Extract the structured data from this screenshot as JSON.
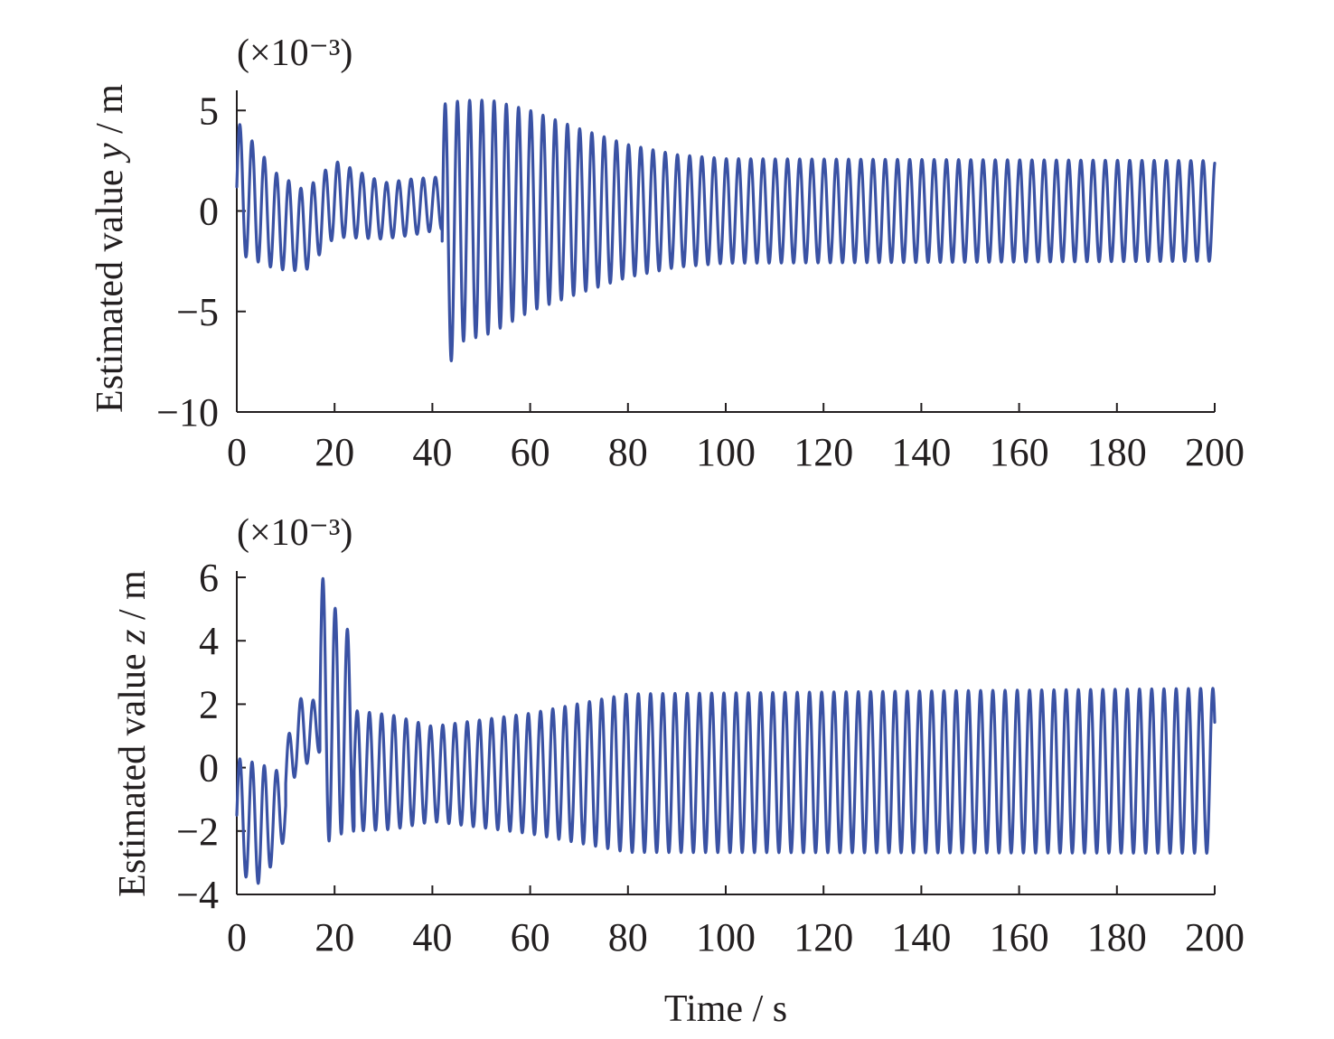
{
  "chart_data": [
    {
      "type": "line",
      "ylabel": "Estimated value y / m",
      "ylabel_prefix": "Estimated value ",
      "ylabel_var": "y",
      "ylabel_suffix": " / m",
      "y_scale_note": "(×10⁻³)",
      "xlabel": "",
      "xlim": [
        0,
        200
      ],
      "ylim": [
        -10,
        6
      ],
      "x_ticks": [
        0,
        20,
        40,
        60,
        80,
        100,
        120,
        140,
        160,
        180,
        200
      ],
      "y_ticks": [
        -10,
        -5,
        0,
        5
      ],
      "y_tick_labels": [
        "−10",
        "−5",
        "0",
        "5"
      ],
      "grid": false,
      "legend": "none",
      "color": "#3a52a4",
      "series": [
        {
          "period_s": 2.5,
          "segments": [
            {
              "t0": 0,
              "t1": 42,
              "center": [
                [
                  0,
                  1.2
                ],
                [
                  8,
                  -0.5
                ],
                [
                  14,
                  -1.0
                ],
                [
                  20,
                  0.6
                ],
                [
                  30,
                  0.0
                ],
                [
                  42,
                  0.4
                ]
              ],
              "amplitude": [
                [
                  0,
                  3.3
                ],
                [
                  8,
                  2.4
                ],
                [
                  14,
                  2.0
                ],
                [
                  20,
                  1.9
                ],
                [
                  30,
                  1.4
                ],
                [
                  36,
                  1.4
                ],
                [
                  42,
                  1.3
                ]
              ]
            },
            {
              "t0": 42,
              "t1": 200,
              "center": [
                [
                  42,
                  -1.5
                ],
                [
                  46,
                  -0.5
                ],
                [
                  60,
                  0.0
                ],
                [
                  200,
                  0.0
                ]
              ],
              "amplitude": [
                [
                  42,
                  6.8
                ],
                [
                  46,
                  6.0
                ],
                [
                  52,
                  5.8
                ],
                [
                  60,
                  5.0
                ],
                [
                  70,
                  4.1
                ],
                [
                  80,
                  3.3
                ],
                [
                  90,
                  2.8
                ],
                [
                  100,
                  2.6
                ],
                [
                  200,
                  2.5
                ]
              ]
            }
          ]
        }
      ]
    },
    {
      "type": "line",
      "ylabel": "Estimated value z / m",
      "ylabel_prefix": "Estimated value ",
      "ylabel_var": "z",
      "ylabel_suffix": " / m",
      "y_scale_note": "(×10⁻³)",
      "xlabel": "Time / s",
      "xlim": [
        0,
        200
      ],
      "ylim": [
        -4,
        6.2
      ],
      "x_ticks": [
        0,
        20,
        40,
        60,
        80,
        100,
        120,
        140,
        160,
        180,
        200
      ],
      "y_ticks": [
        -4,
        -2,
        0,
        2,
        4,
        6
      ],
      "y_tick_labels": [
        "−4",
        "−2",
        "0",
        "2",
        "4",
        "6"
      ],
      "grid": false,
      "legend": "none",
      "color": "#3a52a4",
      "series": [
        {
          "period_s": 2.5,
          "segments": [
            {
              "t0": 0,
              "t1": 10,
              "center": [
                [
                  0,
                  -1.5
                ],
                [
                  5,
                  -1.8
                ],
                [
                  10,
                  -1.2
                ]
              ],
              "amplitude": [
                [
                  0,
                  1.8
                ],
                [
                  5,
                  1.9
                ],
                [
                  10,
                  1.0
                ]
              ]
            },
            {
              "t0": 10,
              "t1": 17,
              "center": [
                [
                  10,
                  -0.5
                ],
                [
                  12,
                  1.0
                ],
                [
                  17,
                  1.3
                ]
              ],
              "amplitude": [
                [
                  10,
                  1.0
                ],
                [
                  12,
                  1.2
                ],
                [
                  17,
                  0.8
                ]
              ]
            },
            {
              "t0": 17,
              "t1": 24,
              "center": [
                [
                  17,
                  1.8
                ],
                [
                  24,
                  1.0
                ]
              ],
              "amplitude": [
                [
                  17,
                  4.4
                ],
                [
                  20,
                  3.6
                ],
                [
                  24,
                  3.0
                ]
              ]
            },
            {
              "t0": 24,
              "t1": 200,
              "center": [
                [
                  24,
                  -0.1
                ],
                [
                  40,
                  -0.2
                ],
                [
                  200,
                  -0.1
                ]
              ],
              "amplitude": [
                [
                  24,
                  1.9
                ],
                [
                  32,
                  1.8
                ],
                [
                  40,
                  1.5
                ],
                [
                  60,
                  1.9
                ],
                [
                  80,
                  2.5
                ],
                [
                  200,
                  2.6
                ]
              ]
            }
          ]
        }
      ]
    }
  ]
}
